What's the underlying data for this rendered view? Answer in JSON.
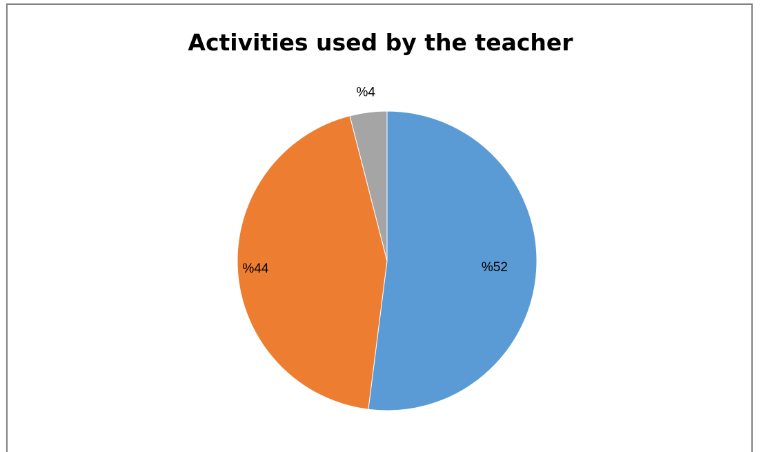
{
  "chart_data": {
    "type": "pie",
    "title": "Activities used by the teacher",
    "values": [
      52,
      44,
      4
    ],
    "data_labels": [
      "%52",
      "%44",
      "%4"
    ],
    "colors": [
      "#5b9bd5",
      "#ed7d31",
      "#a5a5a5"
    ],
    "legend": "none",
    "start_angle": "top",
    "direction": "clockwise"
  }
}
